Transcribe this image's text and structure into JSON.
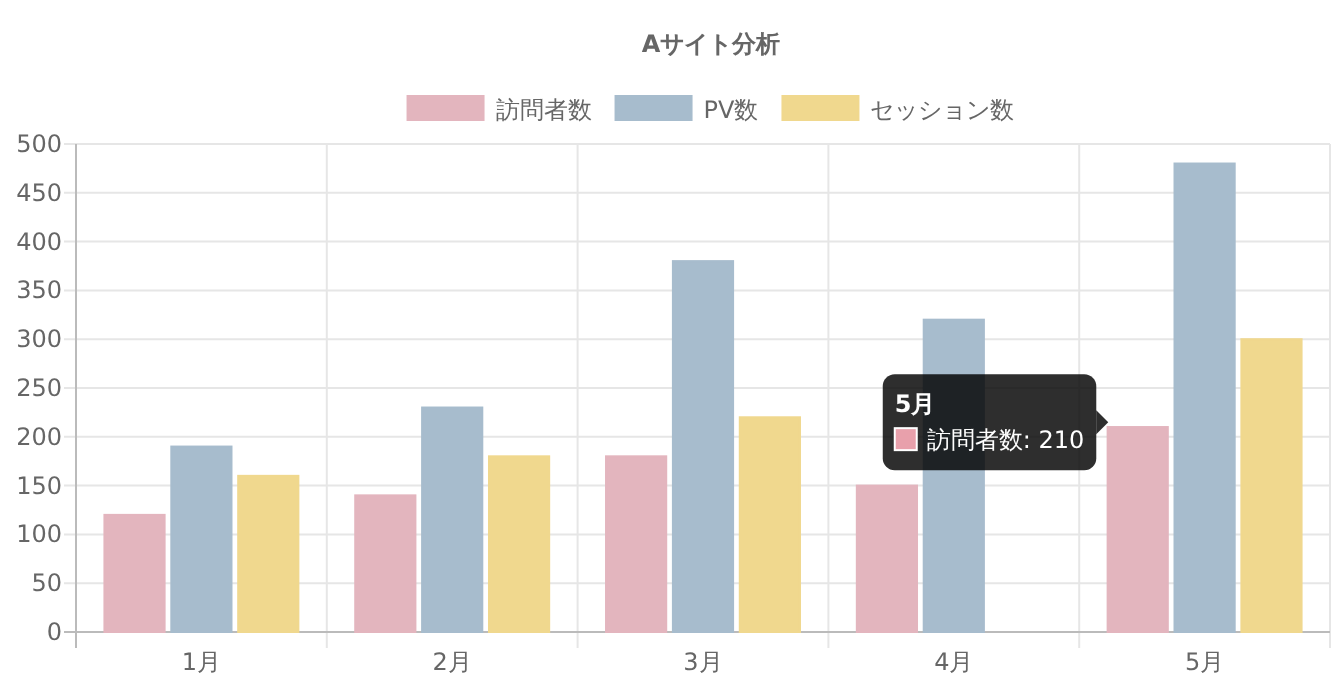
{
  "chart_data": {
    "type": "bar",
    "title": "Aサイト分析",
    "categories": [
      "1月",
      "2月",
      "3月",
      "4月",
      "5月"
    ],
    "series": [
      {
        "name": "訪問者数",
        "color": "#e3b5be",
        "values": [
          120,
          140,
          180,
          150,
          210
        ]
      },
      {
        "name": "PV数",
        "color": "#a7bccd",
        "values": [
          190,
          230,
          380,
          320,
          480
        ]
      },
      {
        "name": "セッション数",
        "color": "#f0d88e",
        "values": [
          160,
          180,
          220,
          null,
          300
        ]
      }
    ],
    "ylim": [
      0,
      500
    ],
    "yticks": [
      0,
      50,
      100,
      150,
      200,
      250,
      300,
      350,
      400,
      450,
      500
    ],
    "grid": true,
    "legend": "top",
    "annotations": [
      "5月",
      "訪問者数: 210"
    ]
  }
}
